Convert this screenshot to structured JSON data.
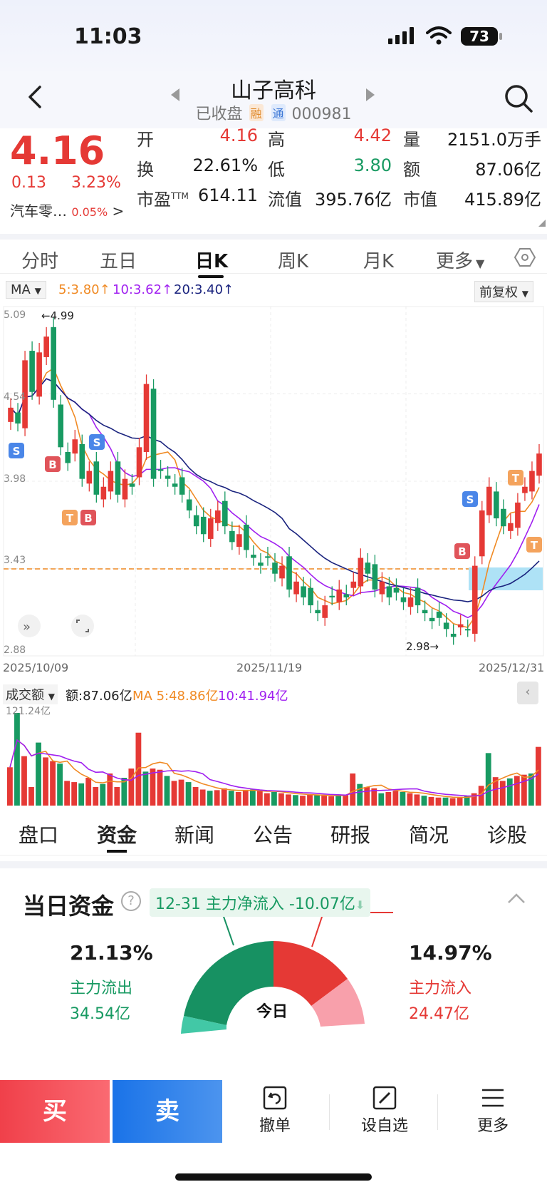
{
  "status": {
    "time": "11:03",
    "battery": "73"
  },
  "nav": {
    "title": "山子高科",
    "status": "已收盘",
    "tag_rong": "融",
    "tag_tong": "通",
    "code": "000981"
  },
  "quote": {
    "price": "4.16",
    "change": "0.13",
    "change_pct": "3.23%",
    "sector": "汽车零…",
    "sector_pct": "0.05%",
    "sector_more": ">",
    "rows": [
      [
        {
          "label": "开",
          "value": "4.16",
          "color": "red"
        },
        {
          "label": "高",
          "value": "4.42",
          "color": "red"
        },
        {
          "label": "量",
          "value": "2151.0万手",
          "color": "black"
        }
      ],
      [
        {
          "label": "换",
          "value": "22.61%",
          "color": "black"
        },
        {
          "label": "低",
          "value": "3.80",
          "color": "green"
        },
        {
          "label": "额",
          "value": "87.06亿",
          "color": "black"
        }
      ],
      [
        {
          "label": "市盈",
          "sup": "TTM",
          "value": "614.11",
          "color": "black"
        },
        {
          "label": "流值",
          "value": "395.76亿",
          "color": "black"
        },
        {
          "label": "市值",
          "value": "415.89亿",
          "color": "black"
        }
      ]
    ]
  },
  "period_tabs": [
    "分时",
    "五日",
    "日K",
    "周K",
    "月K",
    "更多"
  ],
  "active_period": "日K",
  "ma": {
    "label": "MA",
    "ma5": "5:3.80",
    "ma10": "10:3.62",
    "ma20": "20:3.40",
    "adjust": "前复权"
  },
  "kline": {
    "y_labels": [
      "5.09",
      "4.54",
      "3.98",
      "3.43",
      "2.88"
    ],
    "x_labels": [
      "2025/10/09",
      "2025/11/19",
      "2025/12/31"
    ],
    "high_mark": "←4.99",
    "low_mark": "2.98→",
    "colors": {
      "up": "#e53935",
      "down": "#189a62",
      "ma5": "#f08a24",
      "ma10": "#a020f0",
      "ma20": "#1a237e"
    }
  },
  "volume": {
    "label": "成交额",
    "amount": "额:87.06亿",
    "ma5": "MA 5:48.86亿",
    "ma10": "10:41.94亿",
    "max_label": "121.24亿"
  },
  "info_tabs": [
    "盘口",
    "资金",
    "新闻",
    "公告",
    "研报",
    "简况",
    "诊股"
  ],
  "active_info": "资金",
  "fund": {
    "title": "当日资金",
    "help": "?",
    "net_flow": "12-31 主力净流入 -10.07亿",
    "out_pct": "21.13%",
    "out_label": "主力流出",
    "out_amount": "34.54亿",
    "in_pct": "14.97%",
    "in_label": "主力流入",
    "in_amount": "24.47亿",
    "center": "今日"
  },
  "bottom": {
    "buy": "买",
    "sell": "卖",
    "cancel": "撤单",
    "watch": "设自选",
    "more": "更多"
  }
}
